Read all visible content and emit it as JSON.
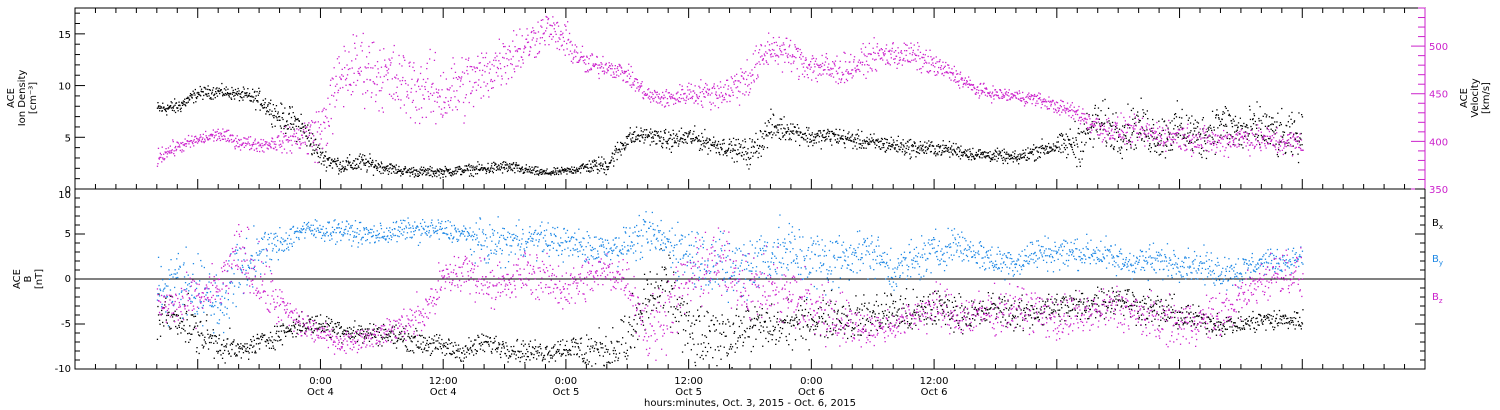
{
  "chart_data": [
    {
      "type": "scatter",
      "panel": "top",
      "ylabel_left": [
        "ACE",
        "Ion Density",
        "[cm⁻³]"
      ],
      "ylabel_right": [
        "ACE",
        "Velocity",
        "[km/s]"
      ],
      "left_axis": {
        "ylim": [
          0,
          17.5
        ],
        "ticks": [
          0,
          5,
          10,
          15
        ],
        "tick_labels": [
          "0",
          "5",
          "10",
          "15"
        ]
      },
      "right_axis": {
        "ylim": [
          350,
          540
        ],
        "ticks": [
          350,
          400,
          450,
          500
        ],
        "tick_labels": [
          "350",
          "400",
          "450",
          "500"
        ]
      },
      "series": [
        {
          "name": "Ion Density",
          "axis": "left",
          "color": "#000000",
          "hours": [
            0,
            2,
            4,
            6,
            8,
            10,
            12,
            14,
            16,
            18,
            20,
            22,
            24,
            26,
            28,
            30,
            32,
            34,
            36,
            38,
            40,
            42,
            44,
            46,
            48,
            50,
            52,
            54,
            56,
            58,
            60,
            62,
            64,
            66,
            68,
            70,
            72,
            74,
            76,
            78,
            80,
            82,
            84,
            86,
            88,
            90,
            92,
            94,
            96,
            98,
            100,
            102,
            104,
            106,
            108,
            110,
            112
          ],
          "values": [
            7.8,
            8.0,
            9.3,
            9.5,
            9.2,
            8.7,
            7.0,
            6.2,
            3.2,
            2.3,
            2.6,
            2.2,
            1.8,
            1.7,
            1.7,
            1.9,
            2.0,
            2.2,
            1.9,
            1.6,
            1.8,
            2.2,
            2.4,
            5.0,
            5.3,
            4.7,
            5.1,
            4.5,
            4.0,
            3.5,
            6.0,
            5.8,
            5.0,
            5.2,
            4.8,
            4.5,
            4.3,
            4.0,
            4.0,
            3.8,
            3.4,
            3.3,
            3.0,
            3.8,
            4.2,
            4.5,
            6.5,
            5.5,
            6.2,
            5.0,
            6.0,
            5.0,
            6.5,
            5.5,
            6.0,
            5.0,
            5.0
          ],
          "spread": [
            0.6,
            0.6,
            0.5,
            0.5,
            0.5,
            0.8,
            1.0,
            1.3,
            0.8,
            0.6,
            0.8,
            0.5,
            0.4,
            0.4,
            0.4,
            0.4,
            0.5,
            0.5,
            0.4,
            0.3,
            0.3,
            0.5,
            0.8,
            0.8,
            0.6,
            0.8,
            0.8,
            0.8,
            0.7,
            1.2,
            1.2,
            0.8,
            0.8,
            0.7,
            0.7,
            0.7,
            0.7,
            0.7,
            0.6,
            0.6,
            0.5,
            0.5,
            0.5,
            0.7,
            0.7,
            1.8,
            1.8,
            1.8,
            1.8,
            1.8,
            1.8,
            1.8,
            1.8,
            1.8,
            1.8,
            1.8,
            1.8
          ]
        },
        {
          "name": "Velocity",
          "axis": "right",
          "color": "#cc22cc",
          "hours": [
            0,
            2,
            4,
            6,
            8,
            10,
            12,
            14,
            16,
            18,
            20,
            22,
            24,
            26,
            28,
            30,
            32,
            34,
            36,
            38,
            40,
            42,
            44,
            46,
            48,
            50,
            52,
            54,
            56,
            58,
            60,
            62,
            64,
            66,
            68,
            70,
            72,
            74,
            76,
            78,
            80,
            82,
            84,
            86,
            88,
            90,
            92,
            94,
            96,
            98,
            100,
            102,
            104,
            106,
            108,
            110,
            112
          ],
          "values": [
            385,
            395,
            402,
            408,
            400,
            397,
            400,
            405,
            410,
            470,
            480,
            470,
            460,
            455,
            450,
            460,
            470,
            490,
            500,
            520,
            505,
            480,
            480,
            470,
            448,
            445,
            452,
            450,
            455,
            470,
            500,
            490,
            480,
            475,
            478,
            490,
            492,
            490,
            480,
            470,
            455,
            450,
            448,
            445,
            437,
            430,
            415,
            412,
            410,
            408,
            405,
            402,
            400,
            405,
            402,
            400,
            398
          ],
          "spread": [
            8,
            6,
            6,
            6,
            6,
            6,
            8,
            15,
            25,
            30,
            30,
            30,
            30,
            30,
            30,
            30,
            25,
            25,
            20,
            15,
            15,
            12,
            8,
            8,
            8,
            8,
            10,
            12,
            15,
            20,
            15,
            15,
            15,
            15,
            12,
            12,
            12,
            12,
            10,
            8,
            6,
            6,
            6,
            6,
            6,
            8,
            12,
            12,
            12,
            12,
            12,
            12,
            12,
            12,
            12,
            12,
            12
          ]
        }
      ]
    },
    {
      "type": "scatter",
      "panel": "bottom",
      "ylabel_left": [
        "ACE",
        "B",
        "[nT]"
      ],
      "ylim": [
        -10,
        10
      ],
      "ticks": [
        -10,
        -5,
        0,
        5,
        10
      ],
      "tick_labels": [
        "-10",
        "-5",
        "0",
        "5",
        "10"
      ],
      "zero_line": true,
      "series": [
        {
          "name": "Bx",
          "label_main": "B",
          "label_sub": "x",
          "color": "#000000",
          "hours": [
            0,
            2,
            4,
            6,
            8,
            10,
            12,
            14,
            16,
            18,
            20,
            22,
            24,
            26,
            28,
            30,
            32,
            34,
            36,
            38,
            40,
            42,
            44,
            46,
            48,
            50,
            52,
            54,
            56,
            58,
            60,
            62,
            64,
            66,
            68,
            70,
            72,
            74,
            76,
            78,
            80,
            82,
            84,
            86,
            88,
            90,
            92,
            94,
            96,
            98,
            100,
            102,
            104,
            106,
            108,
            110,
            112
          ],
          "values": [
            -4,
            -4,
            -6,
            -7,
            -8,
            -7,
            -6,
            -5,
            -5,
            -5.5,
            -6,
            -6,
            -6.5,
            -7,
            -7.5,
            -8,
            -7,
            -7.5,
            -8,
            -8,
            -7.5,
            -8,
            -8,
            -7,
            -2,
            -1,
            -6,
            -7,
            -6,
            -5,
            -5.5,
            -5,
            -4.5,
            -4,
            -4.5,
            -4,
            -3.5,
            -4,
            -3,
            -3.5,
            -4,
            -3,
            -4,
            -3.5,
            -3,
            -3,
            -2.5,
            -2,
            -3,
            -3.5,
            -4,
            -4.5,
            -5,
            -5,
            -4.5,
            -4.5,
            -4.5
          ],
          "spread": [
            2,
            2,
            2,
            1.5,
            1,
            1,
            1,
            1,
            1,
            1,
            1,
            1,
            1,
            1,
            1,
            1,
            1,
            1,
            1,
            1,
            1,
            2,
            2,
            3,
            3,
            3,
            3,
            3,
            3,
            2,
            2,
            2,
            2,
            2,
            2,
            2,
            2,
            2,
            2,
            1.5,
            1.5,
            1.5,
            1.5,
            1.5,
            1.5,
            1.5,
            1.5,
            1.5,
            1.5,
            1.5,
            1.5,
            1,
            1,
            1,
            1,
            1,
            1
          ]
        },
        {
          "name": "By",
          "label_main": "B",
          "label_sub": "y",
          "color": "#1e88e5",
          "hours": [
            0,
            2,
            4,
            6,
            8,
            10,
            12,
            14,
            16,
            18,
            20,
            22,
            24,
            26,
            28,
            30,
            32,
            34,
            36,
            38,
            40,
            42,
            44,
            46,
            48,
            50,
            52,
            54,
            56,
            58,
            60,
            62,
            64,
            66,
            68,
            70,
            72,
            74,
            76,
            78,
            80,
            82,
            84,
            86,
            88,
            90,
            92,
            94,
            96,
            98,
            100,
            102,
            104,
            106,
            108,
            110,
            112
          ],
          "values": [
            -1,
            0,
            -1,
            -3,
            1,
            3,
            4,
            5.5,
            5.5,
            5.5,
            5,
            5,
            5.5,
            5.5,
            5.5,
            5,
            4,
            4,
            4.5,
            4.5,
            4,
            3.5,
            3.5,
            4,
            5,
            4,
            3,
            2,
            1,
            2,
            3,
            3,
            2,
            2,
            3,
            3,
            1,
            2,
            3,
            4,
            3,
            2,
            2,
            3,
            3,
            3,
            3,
            2,
            2,
            2,
            2,
            1.5,
            1,
            1,
            2,
            2,
            2.5
          ],
          "spread": [
            3,
            3,
            3,
            3,
            3,
            2,
            1.5,
            1,
            1,
            1,
            1,
            1,
            1,
            1,
            1,
            1,
            2,
            2,
            1.5,
            1.5,
            1.5,
            1.5,
            1.5,
            1.5,
            2,
            2,
            3,
            3,
            3,
            3,
            3,
            3,
            3,
            3,
            2,
            2,
            2,
            2,
            2,
            1.5,
            1.5,
            1.5,
            1.5,
            1.5,
            1.5,
            1.5,
            1.5,
            1.5,
            1.5,
            1.5,
            1.5,
            1.5,
            1.5,
            1.5,
            1,
            1,
            1
          ]
        },
        {
          "name": "Bz",
          "label_main": "B",
          "label_sub": "z",
          "color": "#cc22cc",
          "hours": [
            0,
            2,
            4,
            6,
            8,
            10,
            12,
            14,
            16,
            18,
            20,
            22,
            24,
            26,
            28,
            30,
            32,
            34,
            36,
            38,
            40,
            42,
            44,
            46,
            48,
            50,
            52,
            54,
            56,
            58,
            60,
            62,
            64,
            66,
            68,
            70,
            72,
            74,
            76,
            78,
            80,
            82,
            84,
            86,
            88,
            90,
            92,
            94,
            96,
            98,
            100,
            102,
            104,
            106,
            108,
            110,
            112
          ],
          "values": [
            -3,
            -3,
            -2,
            -1,
            3,
            0,
            -3,
            -5,
            -6,
            -7,
            -6.5,
            -6,
            -5,
            -4,
            0,
            1,
            0,
            -1,
            1,
            0,
            -1,
            0,
            1,
            0,
            -6,
            -3,
            0,
            2,
            1,
            -1,
            -1,
            -2,
            -3,
            -4,
            -5,
            -5.5,
            -5,
            -4,
            -3,
            -4,
            -4,
            -3.5,
            -3,
            -3.5,
            -4.5,
            -4,
            -3.5,
            -3,
            -4,
            -4.5,
            -5,
            -4.5,
            -4,
            -2,
            0,
            1,
            0.5
          ],
          "spread": [
            2,
            2,
            2,
            2,
            3,
            3,
            2,
            1.5,
            1,
            1,
            1,
            1,
            1.5,
            2,
            2,
            2,
            2,
            2,
            2,
            2,
            2,
            2,
            2,
            2,
            3,
            3,
            3,
            3,
            3,
            3,
            3,
            3,
            3,
            3,
            2,
            1.5,
            1.5,
            1.5,
            2,
            2,
            2,
            2,
            2,
            2,
            2,
            2,
            2,
            2,
            2,
            2,
            2,
            2,
            2,
            2,
            2,
            2,
            2
          ]
        }
      ]
    }
  ],
  "x_axis": {
    "range_hours": [
      -8,
      124
    ],
    "ticks": [
      {
        "hour": 16,
        "time": "0:00",
        "date": "Oct 4"
      },
      {
        "hour": 28,
        "time": "12:00",
        "date": "Oct 4"
      },
      {
        "hour": 40,
        "time": "0:00",
        "date": "Oct 5"
      },
      {
        "hour": 52,
        "time": "12:00",
        "date": "Oct 5"
      },
      {
        "hour": 64,
        "time": "0:00",
        "date": "Oct 6"
      },
      {
        "hour": 76,
        "time": "12:00",
        "date": "Oct 6"
      }
    ],
    "title": "hours:minutes, Oct.  3, 2015 - Oct.  6, 2015"
  },
  "colors": {
    "black": "#000000",
    "magenta": "#cc22cc",
    "blue": "#1e88e5"
  }
}
